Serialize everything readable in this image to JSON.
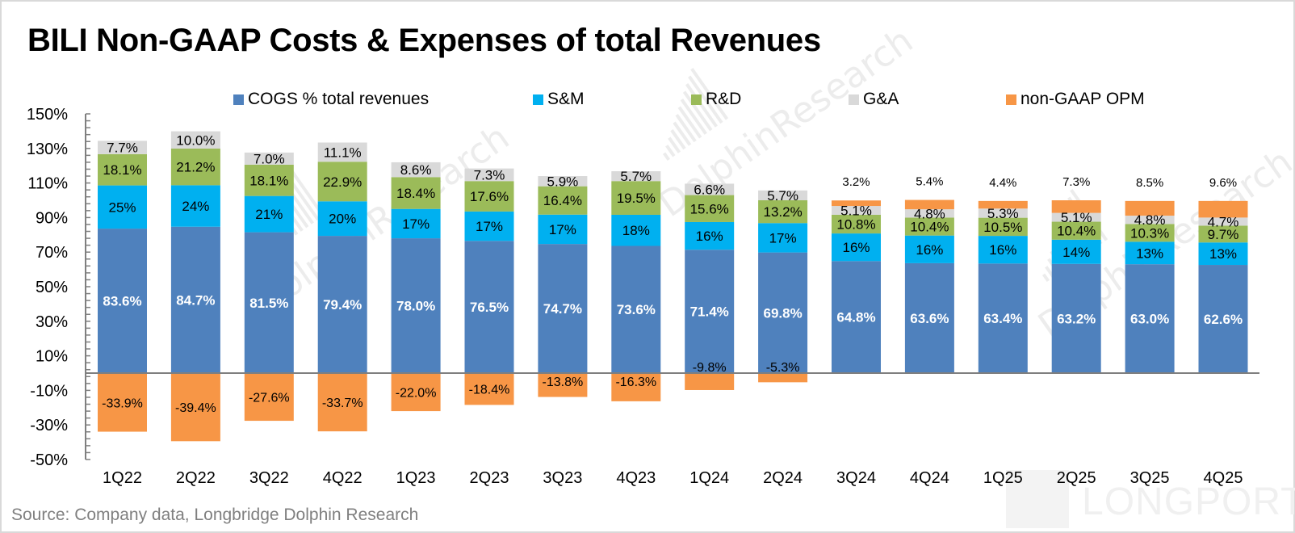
{
  "title": "BILI Non-GAAP Costs & Expenses of total Revenues",
  "source": "Source: Company data, Longbridge Dolphin Research",
  "watermarks": [
    "DolphinResearch",
    "LONGPORT"
  ],
  "colors": {
    "cogs": "#4F81BD",
    "sm": "#00B0F0",
    "rd": "#9BBB59",
    "ga": "#D9D9D9",
    "opm": "#F79646",
    "axis": "#7f7f7f"
  },
  "legend": [
    {
      "key": "cogs",
      "label": "COGS % total revenues"
    },
    {
      "key": "sm",
      "label": "S&M"
    },
    {
      "key": "rd",
      "label": "R&D"
    },
    {
      "key": "ga",
      "label": "G&A"
    },
    {
      "key": "opm",
      "label": "non-GAAP OPM"
    }
  ],
  "chart_data": {
    "type": "bar",
    "stacked": true,
    "title": "BILI Non-GAAP Costs & Expenses of total Revenues",
    "xlabel": "",
    "ylabel": "",
    "ylim": [
      -50,
      150
    ],
    "yticks": [
      150,
      130,
      110,
      90,
      70,
      50,
      30,
      10,
      -10,
      -30,
      -50
    ],
    "ytick_labels": [
      "150%",
      "130%",
      "110%",
      "90%",
      "70%",
      "50%",
      "30%",
      "10%",
      "-10%",
      "-30%",
      "-50%"
    ],
    "grid": false,
    "legend_position": "top",
    "categories": [
      "1Q22",
      "2Q22",
      "3Q22",
      "4Q22",
      "1Q23",
      "2Q23",
      "3Q23",
      "4Q23",
      "1Q24",
      "2Q24",
      "3Q24",
      "4Q24",
      "1Q25",
      "2Q25",
      "3Q25",
      "4Q25"
    ],
    "series": [
      {
        "key": "cogs",
        "name": "COGS % total revenues",
        "values": [
          83.6,
          84.7,
          81.5,
          79.4,
          78.0,
          76.5,
          74.7,
          73.6,
          71.4,
          69.8,
          64.8,
          63.6,
          63.4,
          63.2,
          63.0,
          62.6
        ],
        "labels": [
          "83.6%",
          "84.7%",
          "81.5%",
          "79.4%",
          "78.0%",
          "76.5%",
          "74.7%",
          "73.6%",
          "71.4%",
          "69.8%",
          "64.8%",
          "63.6%",
          "63.4%",
          "63.2%",
          "63.0%",
          "62.6%"
        ]
      },
      {
        "key": "sm",
        "name": "S&M",
        "values": [
          25,
          24,
          21,
          20,
          17,
          17,
          17,
          18,
          16,
          17,
          16,
          16,
          16,
          14,
          13,
          13
        ],
        "labels": [
          "25%",
          "24%",
          "21%",
          "20%",
          "17%",
          "17%",
          "17%",
          "18%",
          "16%",
          "17%",
          "16%",
          "16%",
          "16%",
          "14%",
          "13%",
          "13%"
        ]
      },
      {
        "key": "rd",
        "name": "R&D",
        "values": [
          18.1,
          21.2,
          18.1,
          22.9,
          18.4,
          17.6,
          16.4,
          19.5,
          15.6,
          13.2,
          10.8,
          10.4,
          10.5,
          10.4,
          10.3,
          9.7
        ],
        "labels": [
          "18.1%",
          "21.2%",
          "18.1%",
          "22.9%",
          "18.4%",
          "17.6%",
          "16.4%",
          "19.5%",
          "15.6%",
          "13.2%",
          "10.8%",
          "10.4%",
          "10.5%",
          "10.4%",
          "10.3%",
          "9.7%"
        ]
      },
      {
        "key": "ga",
        "name": "G&A",
        "values": [
          7.7,
          10.0,
          7.0,
          11.1,
          8.6,
          7.3,
          5.9,
          5.7,
          6.6,
          5.7,
          5.1,
          4.8,
          5.3,
          5.1,
          4.8,
          4.7
        ],
        "labels": [
          "7.7%",
          "10.0%",
          "7.0%",
          "11.1%",
          "8.6%",
          "7.3%",
          "5.9%",
          "5.7%",
          "6.6%",
          "5.7%",
          "5.1%",
          "4.8%",
          "5.3%",
          "5.1%",
          "4.8%",
          "4.7%"
        ]
      },
      {
        "key": "opm",
        "name": "non-GAAP OPM",
        "values": [
          -33.9,
          -39.4,
          -27.6,
          -33.7,
          -22.0,
          -18.4,
          -13.8,
          -16.3,
          -9.8,
          -5.3,
          3.2,
          5.4,
          4.4,
          7.3,
          8.5,
          9.6
        ],
        "labels": [
          "-33.9%",
          "-39.4%",
          "-27.6%",
          "-33.7%",
          "-22.0%",
          "-18.4%",
          "-13.8%",
          "-16.3%",
          "-9.8%",
          "-5.3%",
          "3.2%",
          "5.4%",
          "4.4%",
          "7.3%",
          "8.5%",
          "9.6%"
        ]
      }
    ]
  }
}
